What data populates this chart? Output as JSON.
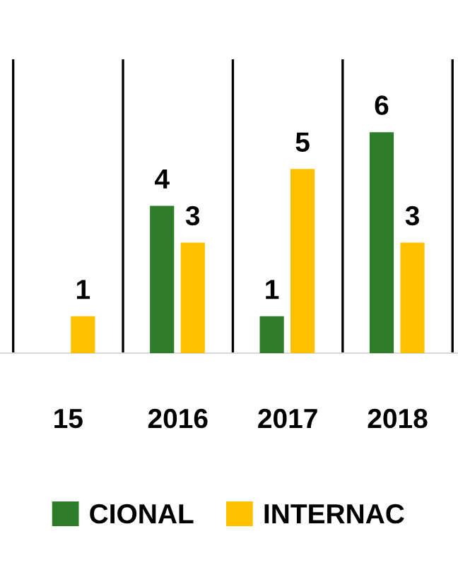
{
  "chart_data": {
    "type": "bar",
    "categories": [
      "15",
      "2016",
      "2017",
      "2018"
    ],
    "series": [
      {
        "name": "CIONAL",
        "color": "#2e7d2a",
        "values": [
          null,
          4,
          1,
          6
        ]
      },
      {
        "name": "INTERNAC",
        "color": "#ffc000",
        "values": [
          1,
          3,
          5,
          3
        ]
      }
    ],
    "data_labels": true,
    "grid": "x",
    "legend": "bottom"
  }
}
